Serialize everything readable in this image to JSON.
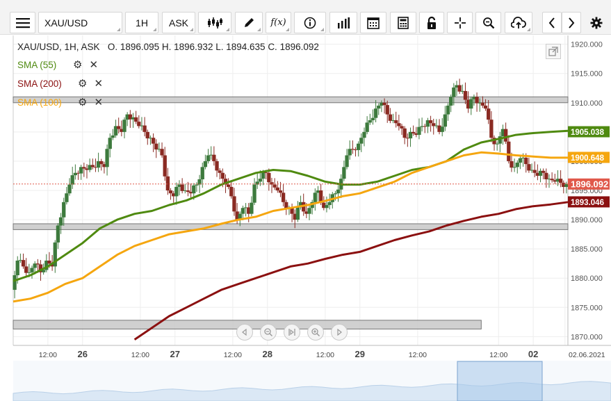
{
  "toolbar": {
    "menu_icon": "hamburger-icon",
    "symbol": "XAU/USD",
    "timeframe": "1H",
    "price_side": "ASK",
    "icons": [
      "candlestick-icon",
      "pencil-icon",
      "function-icon",
      "info-icon",
      "bar-chart-icon",
      "calendar-icon",
      "calculator-icon",
      "lock-icon",
      "crosshair-icon",
      "zoom-icon",
      "cloud-upload-icon",
      "chevron-left-icon",
      "chevron-right-icon",
      "gear-icon"
    ],
    "function_label": "f(x)"
  },
  "header": {
    "instrument": "XAU/USD, 1H, ASK",
    "open": "O. 1896.095",
    "high": "H. 1896.932",
    "low": "L. 1894.635",
    "close": "C. 1896.092"
  },
  "legend": [
    {
      "label": "SMA (55)",
      "color": "#4f8a10"
    },
    {
      "label": "SMA (200)",
      "color": "#8b1010"
    },
    {
      "label": "SMA (100)",
      "color": "#f5a60f"
    }
  ],
  "price_badges": {
    "sma55": {
      "text": "1905.038",
      "value": 1905.038,
      "color": "#4f8a10"
    },
    "sma100": {
      "text": "1900.648",
      "value": 1900.648,
      "color": "#f5a60f"
    },
    "last": {
      "text": "1896.092",
      "value": 1896.092,
      "color": "#e0584a"
    },
    "sma200": {
      "text": "1893.046",
      "value": 1893.046,
      "color": "#8b1010"
    }
  },
  "colors": {
    "up": "#3d7a3d",
    "down": "#8a2a22",
    "grid": "#eeeeee",
    "zone": "#c8c8c8"
  },
  "chart_data": {
    "type": "candlestick",
    "ylim": [
      1868.5,
      1921.5
    ],
    "xlim": [
      0,
      192
    ],
    "y_ticks": [
      "1870.000",
      "1875.000",
      "1880.000",
      "1885.000",
      "1890.000",
      "1895.000",
      "1900.000",
      "1905.000",
      "1910.000",
      "1915.000",
      "1920.000"
    ],
    "x_ticks": [
      {
        "label": "12:00",
        "x": 12,
        "bold": false
      },
      {
        "label": "26",
        "x": 24,
        "bold": true
      },
      {
        "label": "12:00",
        "x": 44,
        "bold": false
      },
      {
        "label": "27",
        "x": 56,
        "bold": true
      },
      {
        "label": "12:00",
        "x": 76,
        "bold": false
      },
      {
        "label": "28",
        "x": 88,
        "bold": true
      },
      {
        "label": "12:00",
        "x": 108,
        "bold": false
      },
      {
        "label": "29",
        "x": 120,
        "bold": true
      },
      {
        "label": "12:00",
        "x": 140,
        "bold": false
      },
      {
        "label": "12:00",
        "x": 168,
        "bold": false
      },
      {
        "label": "02",
        "x": 180,
        "bold": true
      },
      {
        "label": "02.06.2021",
        "x": 191,
        "bold": false
      }
    ],
    "zones": [
      {
        "from": 1910.0,
        "to": 1911.0,
        "x_end": 192
      },
      {
        "from": 1888.3,
        "to": 1889.3,
        "x_end": 192
      },
      {
        "from": 1871.3,
        "to": 1872.8,
        "x_end": 162
      }
    ],
    "series": [
      {
        "name": "SMA (55)",
        "color": "#4f8a10",
        "points": [
          [
            0,
            1879.5
          ],
          [
            6,
            1880.5
          ],
          [
            12,
            1882.0
          ],
          [
            18,
            1884.0
          ],
          [
            24,
            1886.0
          ],
          [
            30,
            1888.5
          ],
          [
            36,
            1890.0
          ],
          [
            42,
            1891.0
          ],
          [
            48,
            1891.5
          ],
          [
            54,
            1892.5
          ],
          [
            60,
            1893.3
          ],
          [
            66,
            1894.5
          ],
          [
            72,
            1896.0
          ],
          [
            78,
            1897.0
          ],
          [
            84,
            1898.0
          ],
          [
            90,
            1898.5
          ],
          [
            96,
            1898.3
          ],
          [
            102,
            1897.5
          ],
          [
            108,
            1896.5
          ],
          [
            114,
            1896.0
          ],
          [
            120,
            1896.0
          ],
          [
            126,
            1896.5
          ],
          [
            132,
            1897.5
          ],
          [
            138,
            1898.5
          ],
          [
            144,
            1899.0
          ],
          [
            150,
            1900.0
          ],
          [
            156,
            1902.0
          ],
          [
            162,
            1903.2
          ],
          [
            168,
            1903.8
          ],
          [
            174,
            1904.5
          ],
          [
            180,
            1904.8
          ],
          [
            186,
            1905.0
          ],
          [
            192,
            1905.2
          ]
        ]
      },
      {
        "name": "SMA (100)",
        "color": "#f5a60f",
        "points": [
          [
            0,
            1876.0
          ],
          [
            6,
            1876.5
          ],
          [
            12,
            1877.5
          ],
          [
            18,
            1879.0
          ],
          [
            24,
            1880.0
          ],
          [
            30,
            1882.0
          ],
          [
            36,
            1884.0
          ],
          [
            42,
            1885.5
          ],
          [
            48,
            1886.5
          ],
          [
            54,
            1887.5
          ],
          [
            60,
            1888.0
          ],
          [
            66,
            1888.5
          ],
          [
            72,
            1889.3
          ],
          [
            78,
            1890.0
          ],
          [
            84,
            1890.5
          ],
          [
            90,
            1891.5
          ],
          [
            96,
            1892.0
          ],
          [
            102,
            1892.5
          ],
          [
            108,
            1893.2
          ],
          [
            114,
            1894.0
          ],
          [
            120,
            1894.5
          ],
          [
            126,
            1895.5
          ],
          [
            132,
            1896.5
          ],
          [
            138,
            1898.0
          ],
          [
            144,
            1899.0
          ],
          [
            150,
            1900.0
          ],
          [
            156,
            1901.0
          ],
          [
            162,
            1901.5
          ],
          [
            168,
            1901.3
          ],
          [
            174,
            1901.0
          ],
          [
            180,
            1900.8
          ],
          [
            186,
            1900.6
          ],
          [
            192,
            1900.6
          ]
        ]
      },
      {
        "name": "SMA (200)",
        "color": "#8b1010",
        "points": [
          [
            42,
            1869.5
          ],
          [
            48,
            1871.5
          ],
          [
            54,
            1873.5
          ],
          [
            60,
            1875.0
          ],
          [
            66,
            1876.5
          ],
          [
            72,
            1878.0
          ],
          [
            78,
            1879.0
          ],
          [
            84,
            1880.0
          ],
          [
            90,
            1881.0
          ],
          [
            96,
            1882.0
          ],
          [
            102,
            1882.5
          ],
          [
            108,
            1883.3
          ],
          [
            114,
            1884.0
          ],
          [
            120,
            1884.5
          ],
          [
            126,
            1885.5
          ],
          [
            132,
            1886.5
          ],
          [
            138,
            1887.3
          ],
          [
            144,
            1888.0
          ],
          [
            150,
            1889.0
          ],
          [
            156,
            1889.8
          ],
          [
            162,
            1890.5
          ],
          [
            168,
            1891.0
          ],
          [
            174,
            1891.8
          ],
          [
            180,
            1892.3
          ],
          [
            186,
            1892.6
          ],
          [
            192,
            1893.0
          ]
        ]
      },
      {
        "name": "XAU/USD close",
        "points": [
          [
            0,
            1878
          ],
          [
            2,
            1883
          ],
          [
            4,
            1882
          ],
          [
            6,
            1881
          ],
          [
            8,
            1882.5
          ],
          [
            10,
            1881
          ],
          [
            12,
            1883
          ],
          [
            14,
            1882
          ],
          [
            16,
            1889
          ],
          [
            18,
            1893
          ],
          [
            20,
            1896
          ],
          [
            22,
            1898
          ],
          [
            24,
            1899
          ],
          [
            26,
            1898.5
          ],
          [
            28,
            1899
          ],
          [
            30,
            1900
          ],
          [
            32,
            1899
          ],
          [
            34,
            1904
          ],
          [
            36,
            1906
          ],
          [
            38,
            1905
          ],
          [
            40,
            1908
          ],
          [
            42,
            1907.5
          ],
          [
            44,
            1906
          ],
          [
            46,
            1905
          ],
          [
            48,
            1904
          ],
          [
            50,
            1902
          ],
          [
            52,
            1901
          ],
          [
            54,
            1895
          ],
          [
            56,
            1894
          ],
          [
            58,
            1896
          ],
          [
            60,
            1895
          ],
          [
            62,
            1894.5
          ],
          [
            64,
            1896
          ],
          [
            66,
            1899
          ],
          [
            68,
            1901
          ],
          [
            70,
            1900
          ],
          [
            72,
            1898
          ],
          [
            74,
            1896
          ],
          [
            76,
            1894
          ],
          [
            78,
            1890
          ],
          [
            80,
            1892
          ],
          [
            82,
            1891
          ],
          [
            84,
            1896
          ],
          [
            86,
            1897
          ],
          [
            88,
            1898
          ],
          [
            90,
            1896
          ],
          [
            92,
            1895
          ],
          [
            94,
            1893
          ],
          [
            96,
            1892
          ],
          [
            98,
            1890
          ],
          [
            100,
            1893
          ],
          [
            102,
            1891
          ],
          [
            104,
            1893
          ],
          [
            106,
            1895
          ],
          [
            108,
            1892
          ],
          [
            110,
            1893
          ],
          [
            112,
            1894.5
          ],
          [
            114,
            1897
          ],
          [
            116,
            1901
          ],
          [
            118,
            1902
          ],
          [
            120,
            1903
          ],
          [
            122,
            1905
          ],
          [
            124,
            1907
          ],
          [
            126,
            1909
          ],
          [
            128,
            1910
          ],
          [
            130,
            1908
          ],
          [
            132,
            1907
          ],
          [
            134,
            1906
          ],
          [
            136,
            1904
          ],
          [
            138,
            1905
          ],
          [
            140,
            1904.5
          ],
          [
            142,
            1906
          ],
          [
            144,
            1907
          ],
          [
            146,
            1906
          ],
          [
            148,
            1905
          ],
          [
            150,
            1908
          ],
          [
            152,
            1911
          ],
          [
            154,
            1913
          ],
          [
            156,
            1912
          ],
          [
            158,
            1909
          ],
          [
            160,
            1911
          ],
          [
            162,
            1910
          ],
          [
            164,
            1909
          ],
          [
            166,
            1904
          ],
          [
            168,
            1903
          ],
          [
            170,
            1905.5
          ],
          [
            172,
            1900
          ],
          [
            174,
            1899
          ],
          [
            176,
            1900.5
          ],
          [
            178,
            1899.5
          ],
          [
            180,
            1898.5
          ],
          [
            182,
            1897.5
          ],
          [
            184,
            1898
          ],
          [
            186,
            1897
          ],
          [
            188,
            1896.5
          ],
          [
            190,
            1896.3
          ],
          [
            192,
            1896.092
          ]
        ]
      }
    ]
  }
}
